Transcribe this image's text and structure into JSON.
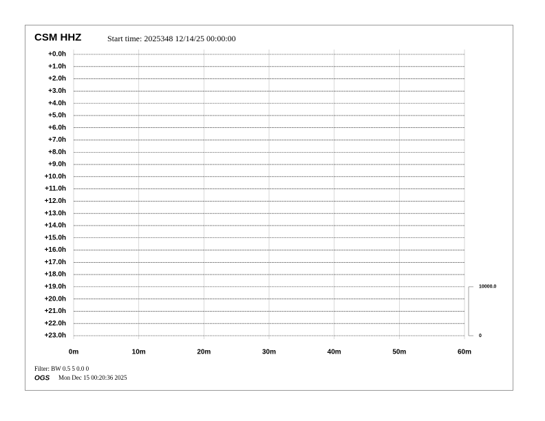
{
  "chart_data": {
    "type": "helicorder",
    "title": "CSM HHZ",
    "subtitle": "Start time: 2025348 12/14/25 00:00:00",
    "categories": [
      "+0.0h",
      "+1.0h",
      "+2.0h",
      "+3.0h",
      "+4.0h",
      "+5.0h",
      "+6.0h",
      "+7.0h",
      "+8.0h",
      "+9.0h",
      "+10.0h",
      "+11.0h",
      "+12.0h",
      "+13.0h",
      "+14.0h",
      "+15.0h",
      "+16.0h",
      "+17.0h",
      "+18.0h",
      "+19.0h",
      "+20.0h",
      "+21.0h",
      "+22.0h",
      "+23.0h"
    ],
    "xlim": [
      0,
      60
    ],
    "xticks": [
      {
        "value": 0,
        "label": "0m"
      },
      {
        "value": 10,
        "label": "10m"
      },
      {
        "value": 20,
        "label": "20m"
      },
      {
        "value": 30,
        "label": "30m"
      },
      {
        "value": 40,
        "label": "40m"
      },
      {
        "value": 50,
        "label": "50m"
      },
      {
        "value": 60,
        "label": "60m"
      }
    ],
    "grid": true,
    "scale": {
      "ylim": [
        0,
        10000
      ],
      "yticks": [
        {
          "value": 10000,
          "label": "10000.0"
        },
        0
      ]
    },
    "footer": {
      "filter": "Filter: BW 0.5 5 0.0 0",
      "agency": "OGS",
      "timestamp": "Mon Dec 15 00:20:36 2025"
    }
  }
}
